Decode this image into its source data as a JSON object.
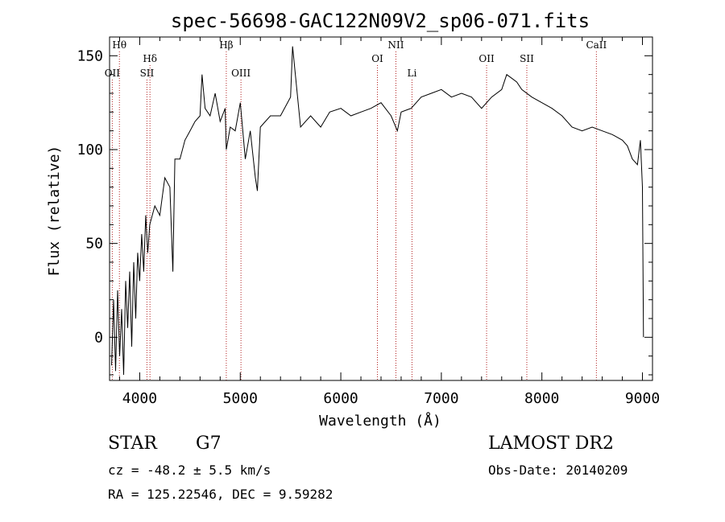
{
  "chart_data": {
    "type": "line",
    "title": "spec-56698-GAC122N09V2_sp06-071.fits",
    "xlabel": "Wavelength (Å)",
    "ylabel": "Flux (relative)",
    "xlim": [
      3700,
      9100
    ],
    "ylim": [
      -23,
      160
    ],
    "xticks": [
      4000,
      5000,
      6000,
      7000,
      8000,
      9000
    ],
    "yticks": [
      0,
      50,
      100,
      150
    ],
    "grid": false,
    "series": [
      {
        "x": [
          3720,
          3740,
          3760,
          3780,
          3800,
          3820,
          3840,
          3860,
          3880,
          3900,
          3920,
          3940,
          3960,
          3980,
          4000,
          4020,
          4040,
          4060,
          4080,
          4100,
          4150,
          4200,
          4250,
          4300,
          4330,
          4350,
          4400,
          4450,
          4500,
          4550,
          4600,
          4620,
          4650,
          4700,
          4750,
          4800,
          4850,
          4861,
          4900,
          4950,
          5000,
          5050,
          5100,
          5150,
          5170,
          5200,
          5300,
          5400,
          5500,
          5520,
          5600,
          5700,
          5800,
          5890,
          6000,
          6100,
          6200,
          6300,
          6400,
          6500,
          6563,
          6600,
          6700,
          6800,
          6900,
          7000,
          7100,
          7200,
          7300,
          7400,
          7500,
          7600,
          7650,
          7700,
          7750,
          7800,
          7900,
          8000,
          8100,
          8200,
          8300,
          8400,
          8500,
          8600,
          8700,
          8800,
          8850,
          8900,
          8950,
          8980,
          9000,
          9010
        ],
        "values": [
          -15,
          20,
          -18,
          25,
          -10,
          15,
          -20,
          30,
          5,
          35,
          -5,
          40,
          10,
          45,
          30,
          55,
          35,
          65,
          45,
          60,
          70,
          65,
          85,
          80,
          35,
          95,
          95,
          105,
          110,
          115,
          118,
          140,
          122,
          118,
          130,
          115,
          122,
          100,
          112,
          110,
          125,
          95,
          110,
          85,
          78,
          112,
          118,
          118,
          128,
          155,
          112,
          118,
          112,
          120,
          122,
          118,
          120,
          122,
          125,
          118,
          110,
          120,
          122,
          128,
          130,
          132,
          128,
          130,
          128,
          122,
          128,
          132,
          140,
          138,
          136,
          132,
          128,
          125,
          122,
          118,
          112,
          110,
          112,
          110,
          108,
          105,
          102,
          95,
          92,
          105,
          80,
          0
        ]
      }
    ],
    "line_markers": [
      {
        "name": "Hθ",
        "x": 3798,
        "row": 1
      },
      {
        "name": "OII",
        "x": 3727,
        "row": 3
      },
      {
        "name": "Hδ",
        "x": 4102,
        "row": 2
      },
      {
        "name": "SII",
        "x": 4072,
        "row": 3
      },
      {
        "name": "Hβ",
        "x": 4861,
        "row": 1
      },
      {
        "name": "OIII",
        "x": 5007,
        "row": 3
      },
      {
        "name": "OI",
        "x": 6364,
        "row": 2
      },
      {
        "name": "NII",
        "x": 6548,
        "row": 1
      },
      {
        "name": "Li",
        "x": 6708,
        "row": 3
      },
      {
        "name": "OII",
        "x": 7450,
        "row": 2
      },
      {
        "name": "SII",
        "x": 7850,
        "row": 2
      },
      {
        "name": "CaII",
        "x": 8542,
        "row": 1
      }
    ]
  },
  "info": {
    "class_label": "STAR",
    "subclass": "G7",
    "cz": "cz = -48.2 ± 5.5 km/s",
    "radec": "RA = 125.22546, DEC =   9.59282",
    "survey": "LAMOST DR2",
    "obs_date": "Obs-Date: 20140209"
  },
  "colors": {
    "line_marker": "#b22222",
    "spectrum": "#000000"
  }
}
